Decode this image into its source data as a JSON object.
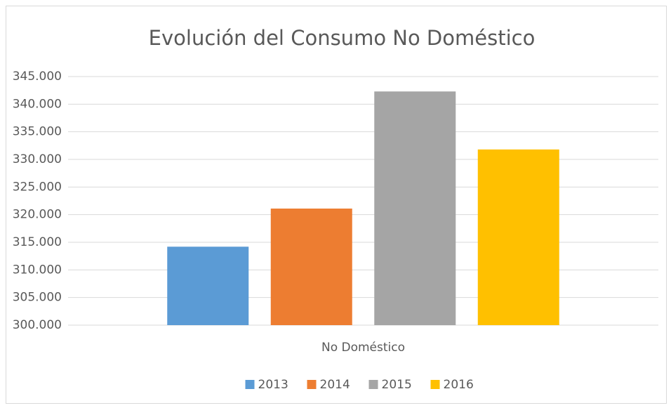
{
  "chart_data": {
    "type": "bar",
    "title": "Evolución del Consumo No Doméstico",
    "categories": [
      "No Doméstico"
    ],
    "series": [
      {
        "name": "2013",
        "color": "#5b9bd5",
        "values": [
          314200
        ]
      },
      {
        "name": "2014",
        "color": "#ed7d31",
        "values": [
          321100
        ]
      },
      {
        "name": "2015",
        "color": "#a5a5a5",
        "values": [
          342300
        ]
      },
      {
        "name": "2016",
        "color": "#ffc000",
        "values": [
          331800
        ]
      }
    ],
    "ylim": [
      300000,
      345000
    ],
    "yticks": [
      {
        "value": 300000,
        "label": "300.000"
      },
      {
        "value": 305000,
        "label": "305.000"
      },
      {
        "value": 310000,
        "label": "310.000"
      },
      {
        "value": 315000,
        "label": "315.000"
      },
      {
        "value": 320000,
        "label": "320.000"
      },
      {
        "value": 325000,
        "label": "325.000"
      },
      {
        "value": 330000,
        "label": "330.000"
      },
      {
        "value": 335000,
        "label": "335.000"
      },
      {
        "value": 340000,
        "label": "340.000"
      },
      {
        "value": 345000,
        "label": "345.000"
      }
    ],
    "grid": true,
    "legend": "bottom"
  }
}
